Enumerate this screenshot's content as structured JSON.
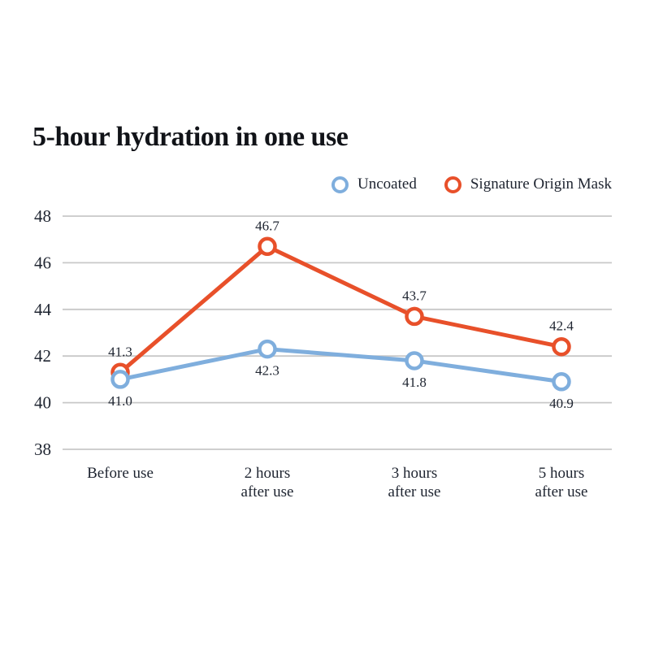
{
  "title": "5-hour hydration in one use",
  "chart_data": {
    "type": "line",
    "title": "5-hour hydration in one use",
    "categories": [
      "Before use",
      "2 hours\nafter use",
      "3 hours\nafter use",
      "5 hours\nafter use"
    ],
    "series": [
      {
        "name": "Uncoated",
        "color": "#7FAEDD",
        "values": [
          41.0,
          42.3,
          41.8,
          40.9
        ],
        "label_position": "below",
        "z_order": "front"
      },
      {
        "name": "Signature Origin Mask",
        "color": "#E8502A",
        "values": [
          41.3,
          46.7,
          43.7,
          42.4
        ],
        "label_position": "above",
        "z_order": "back"
      }
    ],
    "xlabel": "",
    "ylabel": "",
    "ylim": [
      38,
      48
    ],
    "yticks": [
      38,
      40,
      42,
      44,
      46,
      48
    ],
    "grid": "horizontal-only",
    "legend_position": "top-right",
    "marker_style": "open-circle",
    "colors": {
      "gridline": "#C8C8C8",
      "tick_text": "#1E2430",
      "value_label_text": "#1E2430",
      "title_text": "#111318",
      "background": "#FFFFFF"
    }
  }
}
